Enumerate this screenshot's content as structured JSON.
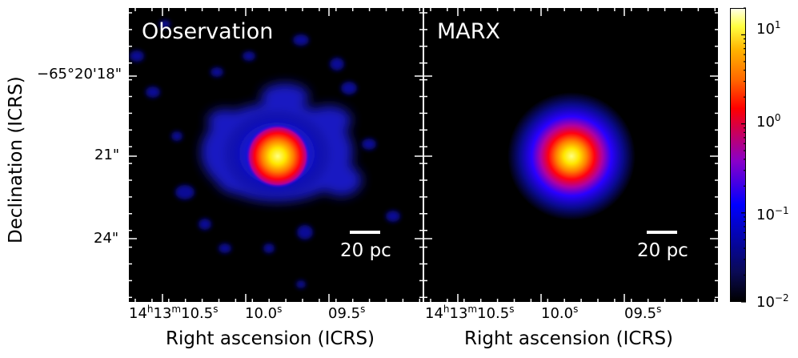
{
  "panels": [
    {
      "title": "Observation",
      "scalebar_label": "20 pc"
    },
    {
      "title": "MARX",
      "scalebar_label": "20 pc"
    }
  ],
  "y_axis": {
    "label": "Declination (ICRS)",
    "ticks": [
      "−65°20'18\"",
      "21\"",
      "24\""
    ]
  },
  "x_axis": {
    "label": "Right ascension (ICRS)",
    "ticks": [
      {
        "h": "14",
        "m": "13",
        "s": "10.5",
        "text": "14h13m10.5s"
      },
      {
        "s": "10.0",
        "text": "10.0s"
      },
      {
        "s": "09.5",
        "text": "09.5s"
      }
    ]
  },
  "colorbar": {
    "scale": "log",
    "range": [
      0.01,
      20
    ],
    "ticks": [
      {
        "base": "10",
        "exp": "1"
      },
      {
        "base": "10",
        "exp": "0"
      },
      {
        "base": "10",
        "exp": "−1"
      },
      {
        "base": "10",
        "exp": "−2"
      }
    ],
    "colormap": [
      "#000000",
      "#0000ff",
      "#ff0000",
      "#ffff00",
      "#ffffe6"
    ]
  }
}
